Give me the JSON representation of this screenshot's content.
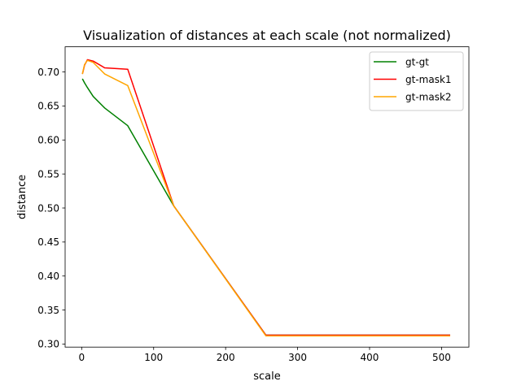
{
  "chart_data": {
    "type": "line",
    "title": "Visualization of distances at each scale (not normalized)",
    "xlabel": "scale",
    "ylabel": "distance",
    "xlim": [
      -23,
      538
    ],
    "ylim": [
      0.2955,
      0.737
    ],
    "xticks": [
      0,
      100,
      200,
      300,
      400,
      500
    ],
    "yticks": [
      0.3,
      0.35,
      0.4,
      0.45,
      0.5,
      0.55,
      0.6,
      0.65,
      0.7
    ],
    "ytick_labels": [
      "0.30",
      "0.35",
      "0.40",
      "0.45",
      "0.50",
      "0.55",
      "0.60",
      "0.65",
      "0.70"
    ],
    "grid": false,
    "legend_position": "top-right",
    "series": [
      {
        "name": "gt-gt",
        "color": "#008000",
        "x": [
          1,
          2,
          4,
          8,
          16,
          32,
          64,
          128,
          256,
          512
        ],
        "y": [
          0.69,
          0.688,
          0.684,
          0.677,
          0.664,
          0.647,
          0.621,
          0.503,
          0.313,
          0.313
        ]
      },
      {
        "name": "gt-mask1",
        "color": "#ff0000",
        "x": [
          1,
          2,
          4,
          8,
          16,
          32,
          64,
          128,
          256,
          512
        ],
        "y": [
          0.697,
          0.701,
          0.71,
          0.718,
          0.716,
          0.706,
          0.704,
          0.503,
          0.313,
          0.313
        ]
      },
      {
        "name": "gt-mask2",
        "color": "#ffa500",
        "x": [
          1,
          2,
          4,
          8,
          16,
          32,
          64,
          128,
          256,
          512
        ],
        "y": [
          0.697,
          0.702,
          0.711,
          0.717,
          0.714,
          0.697,
          0.68,
          0.503,
          0.312,
          0.312
        ]
      }
    ]
  }
}
